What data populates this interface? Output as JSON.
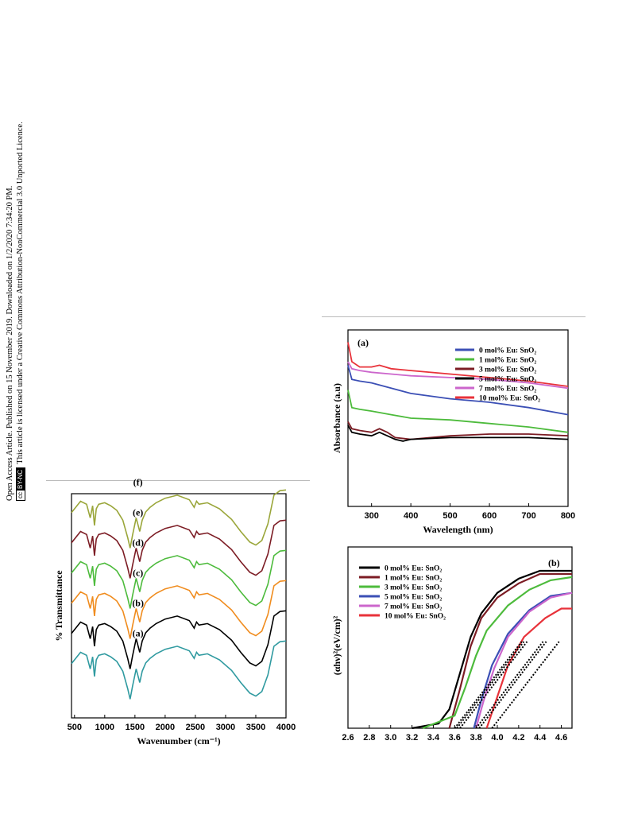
{
  "sidebar": {
    "line1": "Open Access Article. Published on 15 November 2019. Downloaded on 1/2/2020 7:34:20 PM.",
    "line2": "This article is licensed under a Creative Commons Attribution-NonCommercial 3.0 Unported Licence.",
    "badge_cc": "cc",
    "badge_terms": "BY-NC"
  },
  "colors": {
    "blue": "#3b4fb5",
    "green": "#4dbb3c",
    "maroon": "#7c1c24",
    "black": "#000000",
    "pink": "#cc66cc",
    "red": "#e8323a",
    "olive": "#9aa63a",
    "orange": "#f08c1e",
    "teal": "#2f9aa0"
  },
  "chart_data": [
    {
      "id": "ftir",
      "type": "line",
      "xlabel": "Wavenumber (cm⁻¹)",
      "ylabel": "% Transmittance",
      "xlim": [
        450,
        4000
      ],
      "xticks": [
        "500",
        "1000",
        "1500",
        "2000",
        "2500",
        "3000",
        "3500",
        "4000"
      ],
      "xtick_values": [
        500,
        1000,
        1500,
        2000,
        2500,
        3000,
        3500,
        4000
      ],
      "y_ticks_shown": false,
      "series": [
        {
          "name": "(f)",
          "color_key": "olive",
          "offset": 5
        },
        {
          "name": "(e)",
          "color_key": "maroon",
          "offset": 4
        },
        {
          "name": "(d)",
          "color_key": "green",
          "offset": 3
        },
        {
          "name": "(c)",
          "color_key": "orange",
          "offset": 2
        },
        {
          "name": "(b)",
          "color_key": "black",
          "offset": 1
        },
        {
          "name": "(a)",
          "color_key": "teal",
          "offset": 0
        }
      ],
      "profile": {
        "x": [
          450,
          520,
          600,
          700,
          760,
          800,
          830,
          860,
          900,
          1000,
          1100,
          1200,
          1300,
          1380,
          1420,
          1460,
          1520,
          1580,
          1620,
          1680,
          1750,
          1850,
          2000,
          2200,
          2400,
          2480,
          2520,
          2560,
          2700,
          2900,
          3100,
          3250,
          3400,
          3500,
          3600,
          3700,
          3800,
          3900,
          4000
        ],
        "y": [
          0.55,
          0.62,
          0.7,
          0.66,
          0.48,
          0.64,
          0.38,
          0.6,
          0.66,
          0.68,
          0.64,
          0.58,
          0.45,
          0.22,
          0.08,
          0.25,
          0.48,
          0.3,
          0.45,
          0.56,
          0.62,
          0.68,
          0.74,
          0.78,
          0.72,
          0.62,
          0.7,
          0.66,
          0.68,
          0.6,
          0.46,
          0.3,
          0.16,
          0.12,
          0.18,
          0.4,
          0.78,
          0.84,
          0.85
        ]
      }
    },
    {
      "id": "absorbance",
      "type": "line",
      "panel_label": "(a)",
      "xlabel": "Wavelength (nm)",
      "ylabel": "Absorbance (a.u)",
      "xlim": [
        240,
        800
      ],
      "xticks": [
        "300",
        "400",
        "500",
        "600",
        "700",
        "800"
      ],
      "xtick_values": [
        300,
        400,
        500,
        600,
        700,
        800
      ],
      "legend_position": "top-right",
      "series": [
        {
          "name": "0 mol% Eu: SnO₂",
          "color_key": "blue",
          "x": [
            240,
            250,
            270,
            300,
            350,
            400,
            500,
            600,
            700,
            800
          ],
          "y": [
            0.8,
            0.72,
            0.71,
            0.7,
            0.67,
            0.64,
            0.61,
            0.59,
            0.56,
            0.52
          ]
        },
        {
          "name": "1 mol% Eu: SnO₂",
          "color_key": "green",
          "x": [
            240,
            250,
            270,
            300,
            350,
            400,
            500,
            600,
            700,
            800
          ],
          "y": [
            0.66,
            0.56,
            0.55,
            0.54,
            0.52,
            0.5,
            0.49,
            0.47,
            0.45,
            0.42
          ]
        },
        {
          "name": "3 mol% Eu: SnO₂",
          "color_key": "maroon",
          "x": [
            240,
            250,
            270,
            300,
            320,
            340,
            360,
            400,
            500,
            600,
            700,
            800
          ],
          "y": [
            0.48,
            0.44,
            0.43,
            0.42,
            0.44,
            0.42,
            0.39,
            0.38,
            0.4,
            0.41,
            0.41,
            0.4
          ]
        },
        {
          "name": "5 mol% Eu: SnO₂",
          "color_key": "black",
          "x": [
            240,
            250,
            270,
            300,
            320,
            340,
            360,
            380,
            400,
            500,
            600,
            700,
            800
          ],
          "y": [
            0.46,
            0.42,
            0.41,
            0.4,
            0.42,
            0.4,
            0.38,
            0.37,
            0.38,
            0.39,
            0.39,
            0.39,
            0.38
          ]
        },
        {
          "name": "7 mol% Eu: SnO₂",
          "color_key": "pink",
          "x": [
            240,
            250,
            270,
            300,
            350,
            400,
            500,
            600,
            700,
            800
          ],
          "y": [
            0.82,
            0.78,
            0.77,
            0.76,
            0.75,
            0.74,
            0.73,
            0.72,
            0.7,
            0.67
          ]
        },
        {
          "name": "10 mol% Eu: SnO₂",
          "color_key": "red",
          "x": [
            240,
            250,
            270,
            300,
            320,
            350,
            400,
            500,
            600,
            700,
            800
          ],
          "y": [
            0.93,
            0.82,
            0.79,
            0.79,
            0.8,
            0.78,
            0.77,
            0.75,
            0.73,
            0.71,
            0.68
          ]
        }
      ]
    },
    {
      "id": "tauc",
      "type": "line",
      "panel_label": "(b)",
      "xlabel": "",
      "ylabel": "(αhν)²(eV/cm)²",
      "xlim": [
        2.6,
        4.7
      ],
      "xticks": [
        "2.6",
        "2.8",
        "3.0",
        "3.2",
        "3.4",
        "3.6",
        "3.8",
        "4.0",
        "4.2",
        "4.4",
        "4.6"
      ],
      "xtick_values": [
        2.6,
        2.8,
        3.0,
        3.2,
        3.4,
        3.6,
        3.8,
        4.0,
        4.2,
        4.4,
        4.6
      ],
      "legend_position": "top-left",
      "series": [
        {
          "name": "0 mol% Eu: SnO₂",
          "color_key": "black",
          "x": [
            3.2,
            3.45,
            3.55,
            3.65,
            3.75,
            3.85,
            4.0,
            4.2,
            4.4,
            4.7
          ],
          "y": [
            0.0,
            0.03,
            0.12,
            0.35,
            0.58,
            0.73,
            0.86,
            0.95,
            1.0,
            1.0
          ]
        },
        {
          "name": "1 mol% Eu: SnO₂",
          "color_key": "maroon",
          "x": [
            3.55,
            3.65,
            3.75,
            3.85,
            4.0,
            4.2,
            4.4,
            4.7
          ],
          "y": [
            0.0,
            0.25,
            0.52,
            0.7,
            0.83,
            0.92,
            0.98,
            0.98
          ]
        },
        {
          "name": "3 mol% Eu: SnO₂",
          "color_key": "green",
          "x": [
            3.3,
            3.6,
            3.7,
            3.8,
            3.9,
            4.1,
            4.3,
            4.5,
            4.7
          ],
          "y": [
            0.0,
            0.08,
            0.26,
            0.46,
            0.62,
            0.78,
            0.88,
            0.94,
            0.96
          ]
        },
        {
          "name": "5 mol% Eu: SnO₂",
          "color_key": "blue",
          "x": [
            3.78,
            3.85,
            3.95,
            4.1,
            4.3,
            4.5,
            4.7
          ],
          "y": [
            0.0,
            0.18,
            0.4,
            0.6,
            0.75,
            0.84,
            0.86
          ]
        },
        {
          "name": "7 mol% Eu: SnO₂",
          "color_key": "pink",
          "x": [
            3.8,
            3.87,
            3.97,
            4.1,
            4.3,
            4.5,
            4.7
          ],
          "y": [
            0.0,
            0.17,
            0.38,
            0.58,
            0.74,
            0.83,
            0.86
          ]
        },
        {
          "name": "10 mol% Eu: SnO₂",
          "color_key": "red",
          "x": [
            3.9,
            4.0,
            4.1,
            4.25,
            4.45,
            4.6,
            4.7
          ],
          "y": [
            0.0,
            0.2,
            0.4,
            0.58,
            0.7,
            0.76,
            0.76
          ]
        }
      ],
      "fit_lines": {
        "x_intercepts": [
          3.6,
          3.62,
          3.65,
          3.8,
          3.83,
          3.95
        ],
        "slope_per_ev": 1.75
      }
    }
  ]
}
